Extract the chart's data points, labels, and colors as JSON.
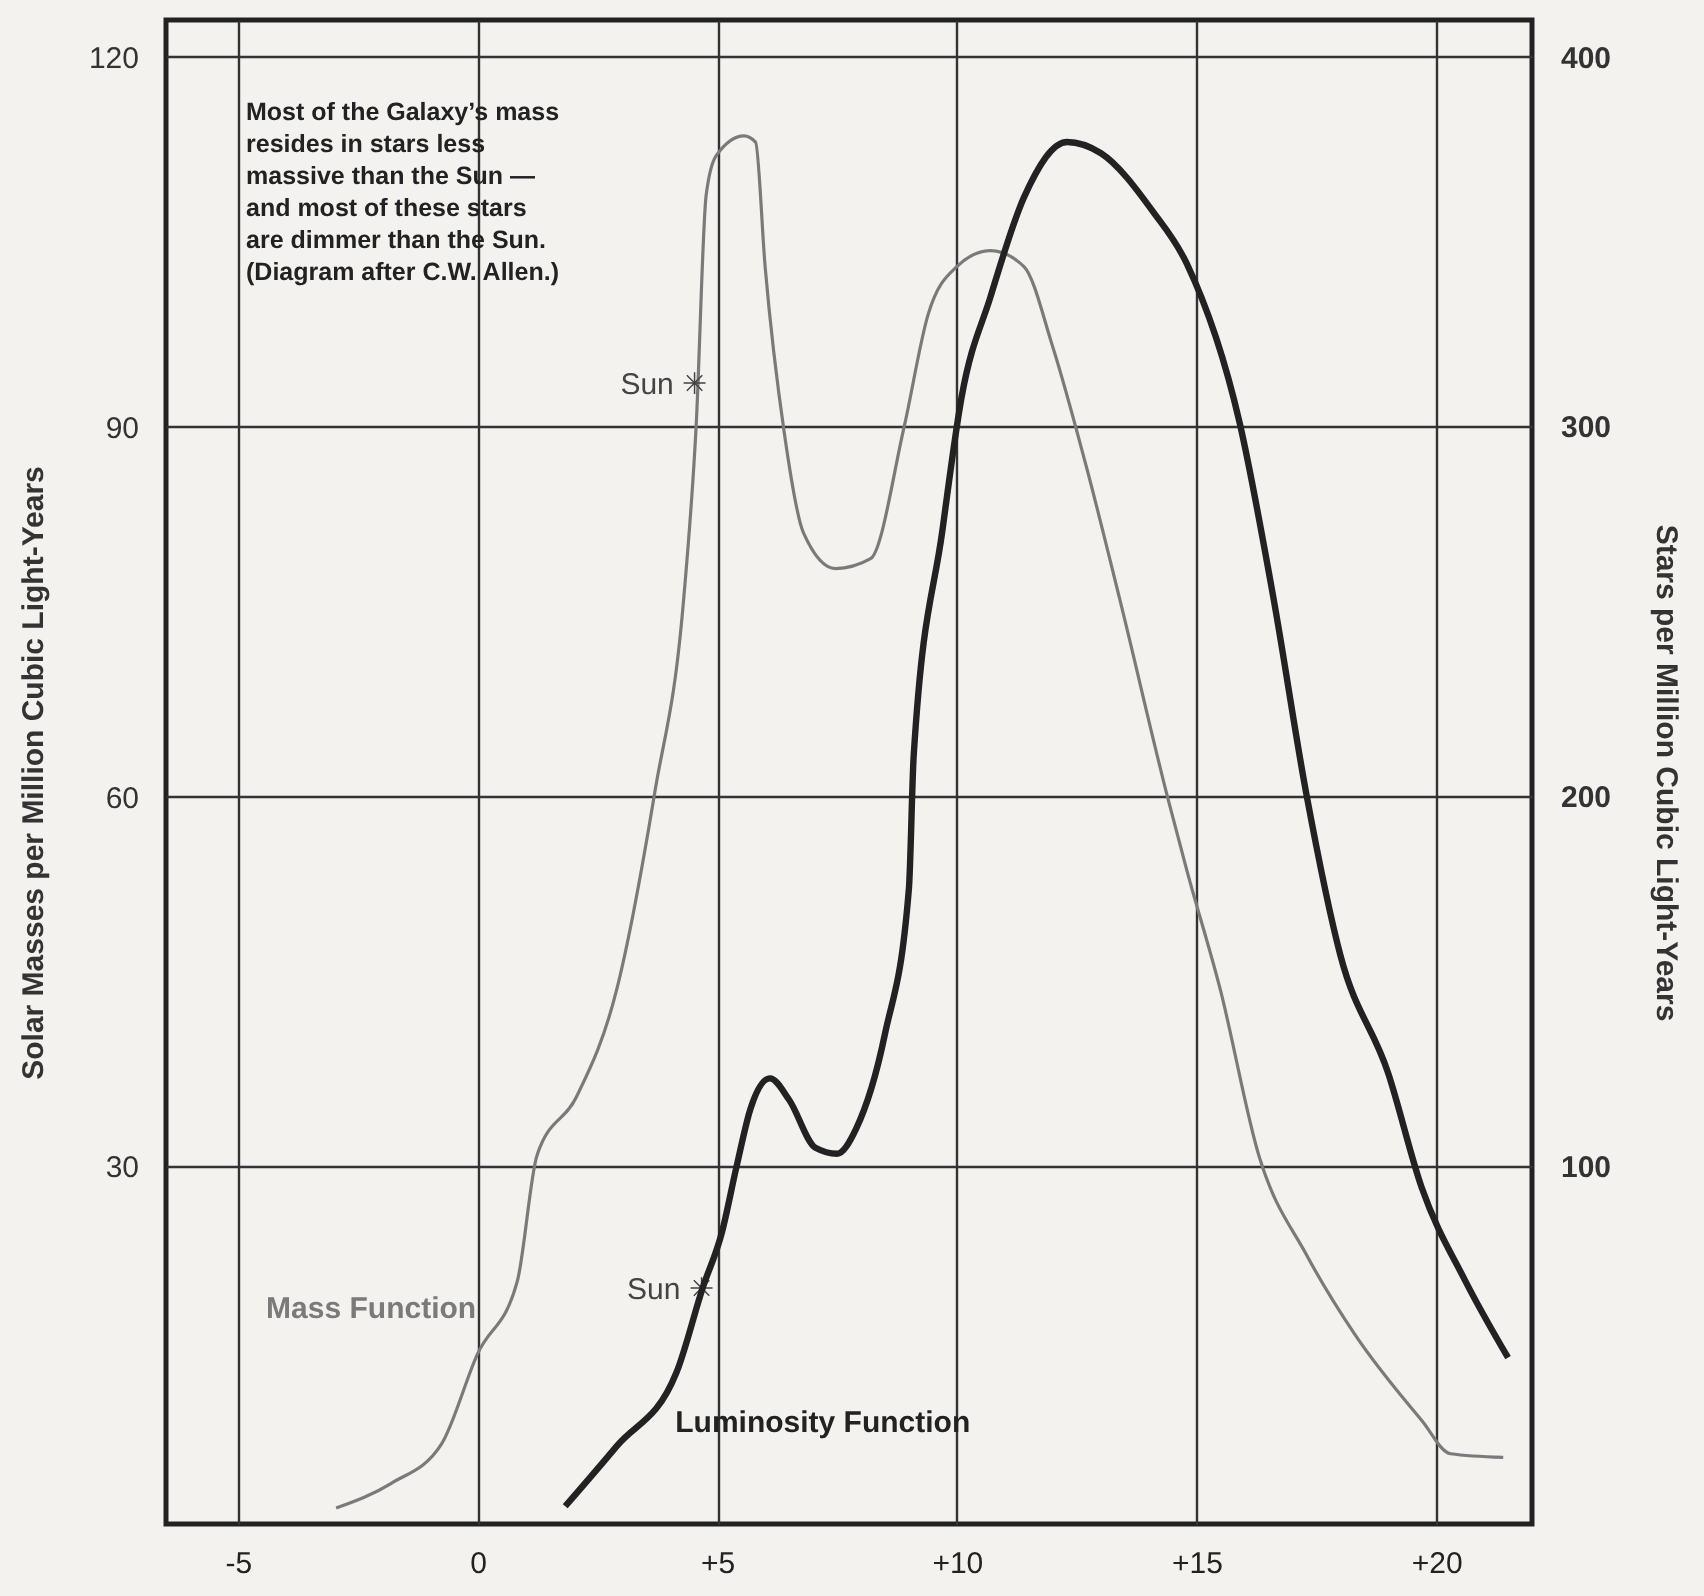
{
  "chart_data": {
    "type": "line",
    "ylabel": "Solar Masses per Million Cubic Light-Years",
    "y2label": "Stars per Million Cubic Light-Years",
    "xlim": [
      -6.5,
      22
    ],
    "xticks": [
      -5,
      0,
      {
        "value": 5,
        "label": "+5"
      },
      {
        "value": 10,
        "label": "+10"
      },
      {
        "value": 15,
        "label": "+15"
      },
      {
        "value": 20,
        "label": "+20"
      }
    ],
    "ylim": [
      1,
      123
    ],
    "yticks": [
      30,
      60,
      90,
      120
    ],
    "y2lim": [
      3,
      410
    ],
    "y2ticks": [
      100,
      200,
      300,
      400
    ],
    "grid": true,
    "series": [
      {
        "name": "Mass Function",
        "color": "#7a7a7a",
        "x": [
          -2.95,
          -1.8,
          -0.75,
          0,
          0.83,
          1.24,
          2.07,
          2.9,
          3.7,
          4.3,
          4.56,
          4.77,
          4.98,
          5.56,
          5.8,
          6.0,
          6.4,
          6.8,
          7.47,
          8.2,
          8.9,
          9.4,
          10.0,
          10.7,
          11.4,
          12.0,
          12.7,
          13.4,
          14.4,
          14.8,
          15.5,
          16.3,
          17.3,
          18.3,
          19.7,
          20.3,
          21.4
        ],
        "values": [
          2.3,
          4.3,
          7.5,
          14.8,
          20.7,
          30.9,
          35.7,
          44.3,
          60.4,
          76,
          90,
          108.8,
          112,
          113.6,
          113.1,
          103,
          89.5,
          81.4,
          78.5,
          79.3,
          90,
          99.1,
          103,
          104.3,
          103,
          96.5,
          86.8,
          76,
          59.9,
          54,
          44.3,
          30.9,
          22.8,
          16.4,
          9.4,
          6.7,
          6.4
        ]
      },
      {
        "name": "Luminosity Function",
        "color": "#222222",
        "axis": "y2",
        "x": [
          1.83,
          2.9,
          4.15,
          4.7,
          5.1,
          5.4,
          5.7,
          6.1,
          6.5,
          7.05,
          7.5,
          7.9,
          8.5,
          9.0,
          9.1,
          9.7,
          10.1,
          10.7,
          11.4,
          12.3,
          13.0,
          14.1,
          14.8,
          15.9,
          16.6,
          17.3,
          18.0,
          19.0,
          19.7,
          20.6,
          21.5
        ],
        "values": [
          7.8,
          24,
          44,
          67,
          82,
          99.5,
          115.6,
          123.6,
          117.8,
          104.8,
          103.2,
          110,
          135.6,
          175,
          211,
          272,
          308,
          335,
          362,
          377,
          374,
          358,
          344,
          301,
          254,
          200,
          157,
          125,
          94,
          69,
          48
        ]
      }
    ],
    "annotations": [
      "Most of the Galaxy’s mass\nresides in stars less\nmassive than the Sun —\nand most of these stars\nare dimmer than the Sun.\n(Diagram after C.W. Allen.)",
      {
        "text": "Sun ✳",
        "x": 4.56,
        "y": 93.5
      },
      {
        "text": "Sun ✳",
        "x": 4.7,
        "y": 20.1
      }
    ]
  }
}
